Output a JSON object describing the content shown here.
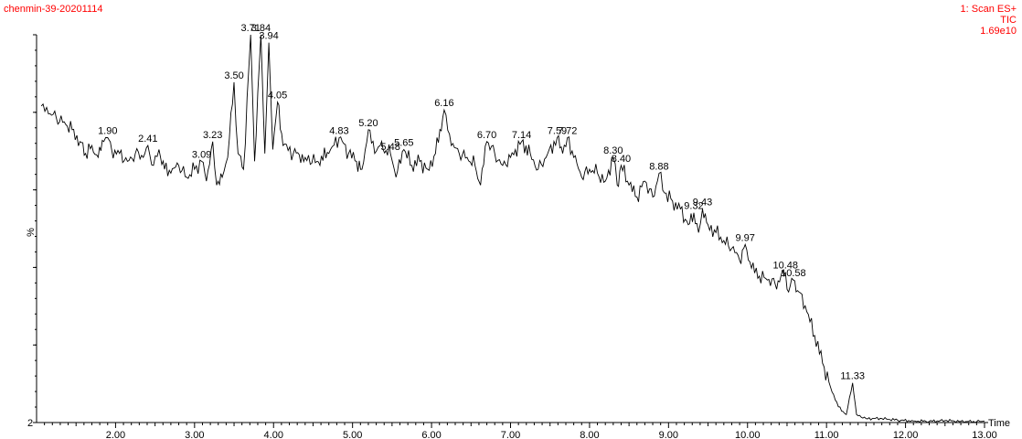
{
  "header": {
    "sample_name": "chenmin-39-20201114",
    "scan_label": "1: Scan ES+",
    "trace_type": "TIC",
    "intensity": "1.69e10"
  },
  "chart_data": {
    "type": "line",
    "title": "",
    "xlabel": "Time",
    "ylabel": "%",
    "xlim": [
      1.0,
      13.0
    ],
    "ylim": [
      2,
      100
    ],
    "y_min_label": "2",
    "grid": false,
    "xticks": [
      "2.00",
      "3.00",
      "4.00",
      "5.00",
      "6.00",
      "7.00",
      "8.00",
      "9.00",
      "10.00",
      "11.00",
      "12.00",
      "13.00"
    ],
    "series": [
      {
        "values": [
          [
            1.06,
            82
          ],
          [
            1.15,
            80
          ],
          [
            1.25,
            79
          ],
          [
            1.35,
            78
          ],
          [
            1.45,
            76
          ],
          [
            1.55,
            73
          ],
          [
            1.62,
            70
          ],
          [
            1.7,
            72
          ],
          [
            1.78,
            69
          ],
          [
            1.85,
            73
          ],
          [
            1.9,
            74
          ],
          [
            1.95,
            71
          ],
          [
            2.05,
            70
          ],
          [
            2.15,
            68
          ],
          [
            2.25,
            70
          ],
          [
            2.35,
            69
          ],
          [
            2.41,
            72
          ],
          [
            2.48,
            67
          ],
          [
            2.55,
            71
          ],
          [
            2.62,
            66
          ],
          [
            2.7,
            65
          ],
          [
            2.8,
            67
          ],
          [
            2.9,
            64
          ],
          [
            3.0,
            66
          ],
          [
            3.09,
            68
          ],
          [
            3.15,
            63
          ],
          [
            3.23,
            73
          ],
          [
            3.28,
            62
          ],
          [
            3.35,
            64
          ],
          [
            3.42,
            69
          ],
          [
            3.5,
            88
          ],
          [
            3.55,
            70
          ],
          [
            3.62,
            66
          ],
          [
            3.71,
            100
          ],
          [
            3.76,
            68
          ],
          [
            3.84,
            100
          ],
          [
            3.89,
            70
          ],
          [
            3.94,
            98
          ],
          [
            3.99,
            71
          ],
          [
            4.05,
            83
          ],
          [
            4.12,
            72
          ],
          [
            4.25,
            70
          ],
          [
            4.4,
            69
          ],
          [
            4.55,
            68
          ],
          [
            4.7,
            70
          ],
          [
            4.83,
            74
          ],
          [
            4.95,
            70
          ],
          [
            5.05,
            68
          ],
          [
            5.12,
            66
          ],
          [
            5.2,
            76
          ],
          [
            5.28,
            70
          ],
          [
            5.35,
            72
          ],
          [
            5.48,
            70
          ],
          [
            5.55,
            64
          ],
          [
            5.65,
            71
          ],
          [
            5.75,
            67
          ],
          [
            5.85,
            68
          ],
          [
            5.95,
            66
          ],
          [
            6.05,
            70
          ],
          [
            6.16,
            81
          ],
          [
            6.25,
            72
          ],
          [
            6.35,
            70
          ],
          [
            6.45,
            69
          ],
          [
            6.55,
            67
          ],
          [
            6.62,
            62
          ],
          [
            6.7,
            73
          ],
          [
            6.8,
            70
          ],
          [
            6.9,
            67
          ],
          [
            7.0,
            69
          ],
          [
            7.14,
            73
          ],
          [
            7.25,
            70
          ],
          [
            7.35,
            66
          ],
          [
            7.45,
            69
          ],
          [
            7.59,
            74
          ],
          [
            7.66,
            70
          ],
          [
            7.72,
            74
          ],
          [
            7.8,
            69
          ],
          [
            7.9,
            64
          ],
          [
            8.0,
            66
          ],
          [
            8.1,
            65
          ],
          [
            8.2,
            63
          ],
          [
            8.3,
            69
          ],
          [
            8.35,
            62
          ],
          [
            8.4,
            67
          ],
          [
            8.5,
            62
          ],
          [
            8.6,
            59
          ],
          [
            8.7,
            63
          ],
          [
            8.8,
            59
          ],
          [
            8.88,
            65
          ],
          [
            8.95,
            60
          ],
          [
            9.05,
            58
          ],
          [
            9.15,
            56
          ],
          [
            9.25,
            52
          ],
          [
            9.32,
            55
          ],
          [
            9.38,
            50
          ],
          [
            9.43,
            56
          ],
          [
            9.5,
            52
          ],
          [
            9.6,
            50
          ],
          [
            9.7,
            48
          ],
          [
            9.8,
            46
          ],
          [
            9.9,
            43
          ],
          [
            9.97,
            47
          ],
          [
            10.05,
            41
          ],
          [
            10.15,
            39
          ],
          [
            10.25,
            38
          ],
          [
            10.35,
            37
          ],
          [
            10.48,
            40
          ],
          [
            10.52,
            35
          ],
          [
            10.58,
            38
          ],
          [
            10.65,
            35
          ],
          [
            10.75,
            30
          ],
          [
            10.85,
            24
          ],
          [
            10.95,
            17
          ],
          [
            11.05,
            11
          ],
          [
            11.15,
            6
          ],
          [
            11.25,
            4
          ],
          [
            11.33,
            12
          ],
          [
            11.38,
            4
          ],
          [
            11.5,
            3
          ],
          [
            11.7,
            3
          ],
          [
            11.9,
            2.6
          ],
          [
            12.1,
            2.4
          ],
          [
            12.3,
            2.3
          ],
          [
            12.5,
            2.5
          ],
          [
            12.7,
            2.3
          ],
          [
            12.9,
            2.2
          ],
          [
            13.0,
            2.4
          ]
        ]
      }
    ],
    "peak_labels": [
      {
        "time": 1.9,
        "label": "1.90",
        "y": 74
      },
      {
        "time": 2.41,
        "label": "2.41",
        "y": 72
      },
      {
        "time": 3.09,
        "label": "3.09",
        "y": 68
      },
      {
        "time": 3.23,
        "label": "3.23",
        "y": 73
      },
      {
        "time": 3.5,
        "label": "3.50",
        "y": 88
      },
      {
        "time": 3.71,
        "label": "3.71",
        "y": 100
      },
      {
        "time": 3.84,
        "label": "3.84",
        "y": 100
      },
      {
        "time": 3.94,
        "label": "3.94",
        "y": 98
      },
      {
        "time": 4.05,
        "label": "4.05",
        "y": 83
      },
      {
        "time": 4.83,
        "label": "4.83",
        "y": 74
      },
      {
        "time": 5.2,
        "label": "5.20",
        "y": 76
      },
      {
        "time": 5.48,
        "label": "5.48",
        "y": 70
      },
      {
        "time": 5.65,
        "label": "5.65",
        "y": 71
      },
      {
        "time": 6.16,
        "label": "6.16",
        "y": 81
      },
      {
        "time": 6.7,
        "label": "6.70",
        "y": 73
      },
      {
        "time": 7.14,
        "label": "7.14",
        "y": 73
      },
      {
        "time": 7.59,
        "label": "7.59",
        "y": 74
      },
      {
        "time": 7.72,
        "label": "7.72",
        "y": 74
      },
      {
        "time": 8.3,
        "label": "8.30",
        "y": 69
      },
      {
        "time": 8.4,
        "label": "8.40",
        "y": 67
      },
      {
        "time": 8.88,
        "label": "8.88",
        "y": 65
      },
      {
        "time": 9.32,
        "label": "9.32",
        "y": 55
      },
      {
        "time": 9.43,
        "label": "9.43",
        "y": 56
      },
      {
        "time": 9.97,
        "label": "9.97",
        "y": 47
      },
      {
        "time": 10.48,
        "label": "10.48",
        "y": 40
      },
      {
        "time": 10.58,
        "label": "10.58",
        "y": 38
      },
      {
        "time": 11.33,
        "label": "11.33",
        "y": 12
      }
    ]
  }
}
